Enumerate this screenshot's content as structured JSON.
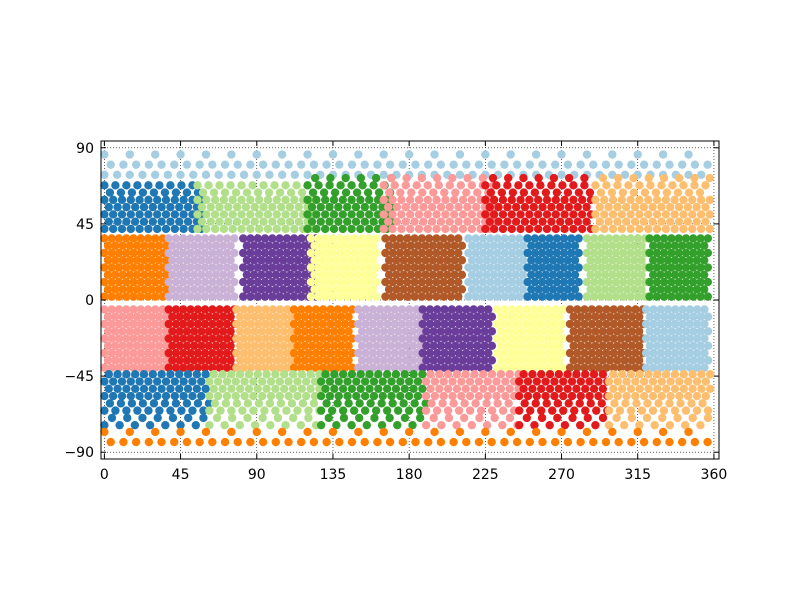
{
  "chart_data": {
    "type": "scatter",
    "title": "",
    "xlabel": "",
    "ylabel": "",
    "xlim": [
      -2,
      363
    ],
    "ylim": [
      -94,
      94
    ],
    "xticks": [
      0,
      45,
      90,
      135,
      180,
      225,
      270,
      315,
      360
    ],
    "xtick_labels": [
      "0",
      "45",
      "90",
      "135",
      "180",
      "225",
      "270",
      "315",
      "360"
    ],
    "yticks": [
      90,
      45,
      0,
      -45,
      -90
    ],
    "ytick_labels": [
      "90",
      "45",
      "0",
      "−45",
      "−90"
    ],
    "grid": true,
    "grid_style": "dotted",
    "legend": "none",
    "palette": [
      "#a6cee3",
      "#1f78b4",
      "#b2df8a",
      "#33a02c",
      "#fb9a99",
      "#e31a1c",
      "#fdbf6f",
      "#ff7f00",
      "#cab2d6",
      "#6a3d9a",
      "#ffff99",
      "#b15928"
    ],
    "description_of_pattern": "",
    "series": [
      {
        "color": "#a6cee3",
        "lon_range": [
          0,
          360
        ],
        "lat_range": [
          74,
          86
        ],
        "group": "north-cap-ring"
      },
      {
        "color": "#1f78b4",
        "lon_range": [
          0,
          58
        ],
        "lat_range": [
          42,
          70
        ]
      },
      {
        "color": "#b2df8a",
        "lon_range": [
          55,
          123
        ],
        "lat_range": [
          42,
          72
        ]
      },
      {
        "color": "#33a02c",
        "lon_range": [
          120,
          170
        ],
        "lat_range": [
          42,
          74
        ]
      },
      {
        "color": "#fb9a99",
        "lon_range": [
          165,
          230
        ],
        "lat_range": [
          42,
          74
        ]
      },
      {
        "color": "#e31a1c",
        "lon_range": [
          225,
          288
        ],
        "lat_range": [
          42,
          74
        ]
      },
      {
        "color": "#fdbf6f",
        "lon_range": [
          290,
          358
        ],
        "lat_range": [
          42,
          74
        ]
      },
      {
        "color": "#ff7f00",
        "lon_range": [
          0,
          38
        ],
        "lat_range": [
          2,
          40
        ]
      },
      {
        "color": "#cab2d6",
        "lon_range": [
          38,
          78
        ],
        "lat_range": [
          2,
          40
        ]
      },
      {
        "color": "#6a3d9a",
        "lon_range": [
          82,
          125
        ],
        "lat_range": [
          2,
          40
        ]
      },
      {
        "color": "#ffff99",
        "lon_range": [
          122,
          162
        ],
        "lat_range": [
          2,
          40
        ]
      },
      {
        "color": "#b15928",
        "lon_range": [
          166,
          212
        ],
        "lat_range": [
          2,
          40
        ]
      },
      {
        "color": "#a6cee3",
        "lon_range": [
          215,
          250
        ],
        "lat_range": [
          2,
          40
        ]
      },
      {
        "color": "#1f78b4",
        "lon_range": [
          250,
          282
        ],
        "lat_range": [
          2,
          40
        ]
      },
      {
        "color": "#b2df8a",
        "lon_range": [
          285,
          320
        ],
        "lat_range": [
          2,
          40
        ]
      },
      {
        "color": "#33a02c",
        "lon_range": [
          322,
          358
        ],
        "lat_range": [
          2,
          40
        ]
      },
      {
        "color": "#fb9a99",
        "lon_range": [
          0,
          38
        ],
        "lat_range": [
          -40,
          -2
        ]
      },
      {
        "color": "#e31a1c",
        "lon_range": [
          38,
          78
        ],
        "lat_range": [
          -40,
          -2
        ]
      },
      {
        "color": "#fdbf6f",
        "lon_range": [
          78,
          112
        ],
        "lat_range": [
          -40,
          -2
        ]
      },
      {
        "color": "#ff7f00",
        "lon_range": [
          112,
          148
        ],
        "lat_range": [
          -40,
          -2
        ]
      },
      {
        "color": "#cab2d6",
        "lon_range": [
          150,
          188
        ],
        "lat_range": [
          -40,
          -2
        ]
      },
      {
        "color": "#6a3d9a",
        "lon_range": [
          188,
          230
        ],
        "lat_range": [
          -40,
          -2
        ]
      },
      {
        "color": "#ffff99",
        "lon_range": [
          232,
          272
        ],
        "lat_range": [
          -40,
          -2
        ]
      },
      {
        "color": "#b15928",
        "lon_range": [
          275,
          318
        ],
        "lat_range": [
          -40,
          -2
        ]
      },
      {
        "color": "#a6cee3",
        "lon_range": [
          320,
          358
        ],
        "lat_range": [
          -40,
          -2
        ]
      },
      {
        "color": "#1f78b4",
        "lon_range": [
          0,
          62
        ],
        "lat_range": [
          -74,
          -42
        ]
      },
      {
        "color": "#b2df8a",
        "lon_range": [
          62,
          128
        ],
        "lat_range": [
          -74,
          -42
        ]
      },
      {
        "color": "#33a02c",
        "lon_range": [
          128,
          190
        ],
        "lat_range": [
          -74,
          -42
        ]
      },
      {
        "color": "#fb9a99",
        "lon_range": [
          190,
          245
        ],
        "lat_range": [
          -74,
          -42
        ]
      },
      {
        "color": "#e31a1c",
        "lon_range": [
          245,
          298
        ],
        "lat_range": [
          -74,
          -42
        ]
      },
      {
        "color": "#fdbf6f",
        "lon_range": [
          298,
          358
        ],
        "lat_range": [
          -74,
          -42
        ]
      },
      {
        "color": "#ff7f00",
        "lon_range": [
          0,
          360
        ],
        "lat_range": [
          -86,
          -78
        ],
        "group": "south-cap-ring"
      }
    ]
  }
}
